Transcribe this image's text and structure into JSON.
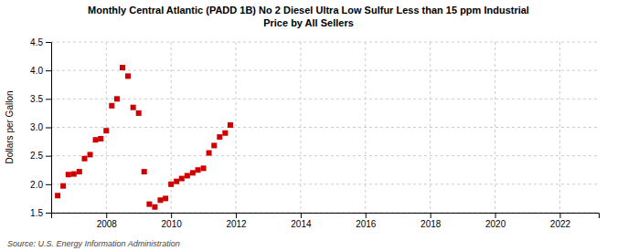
{
  "chart_data": {
    "type": "scatter",
    "title": "Monthly Central Atlantic (PADD 1B) No 2 Diesel Ultra Low Sulfur Less than 15 ppm Industrial\nPrice by All Sellers",
    "ylabel": "Dollars per Gallon",
    "source": "Source: U.S. Energy Information Administration",
    "color": "#cc0000",
    "marker": "square",
    "grid": true,
    "xlim": [
      2006.3,
      2023.2
    ],
    "ylim": [
      1.5,
      4.5
    ],
    "xticks": [
      2008,
      2010,
      2012,
      2014,
      2016,
      2018,
      2020,
      2022
    ],
    "yticks": [
      1.5,
      {
        "value": 2.0,
        "label": "2.0"
      },
      2.5,
      {
        "value": 3.0,
        "label": "3.0"
      },
      3.5,
      {
        "value": 4.0,
        "label": "4.0"
      },
      4.5
    ],
    "x": [
      2006.5,
      2006.67,
      2006.83,
      2007.0,
      2007.17,
      2007.33,
      2007.5,
      2007.67,
      2007.83,
      2008.0,
      2008.17,
      2008.33,
      2008.5,
      2008.67,
      2008.83,
      2009.0,
      2009.17,
      2009.33,
      2009.5,
      2009.67,
      2009.83,
      2010.0,
      2010.17,
      2010.33,
      2010.5,
      2010.67,
      2010.83,
      2011.0,
      2011.17,
      2011.33,
      2011.5,
      2011.67,
      2011.83
    ],
    "values": [
      1.8,
      1.97,
      2.17,
      2.18,
      2.22,
      2.45,
      2.52,
      2.78,
      2.8,
      2.94,
      3.38,
      3.5,
      4.05,
      3.9,
      3.35,
      3.25,
      2.22,
      1.65,
      1.6,
      1.72,
      1.75,
      2.0,
      2.05,
      2.1,
      2.15,
      2.2,
      2.25,
      2.28,
      2.55,
      2.68,
      2.83,
      2.9,
      3.04
    ]
  }
}
